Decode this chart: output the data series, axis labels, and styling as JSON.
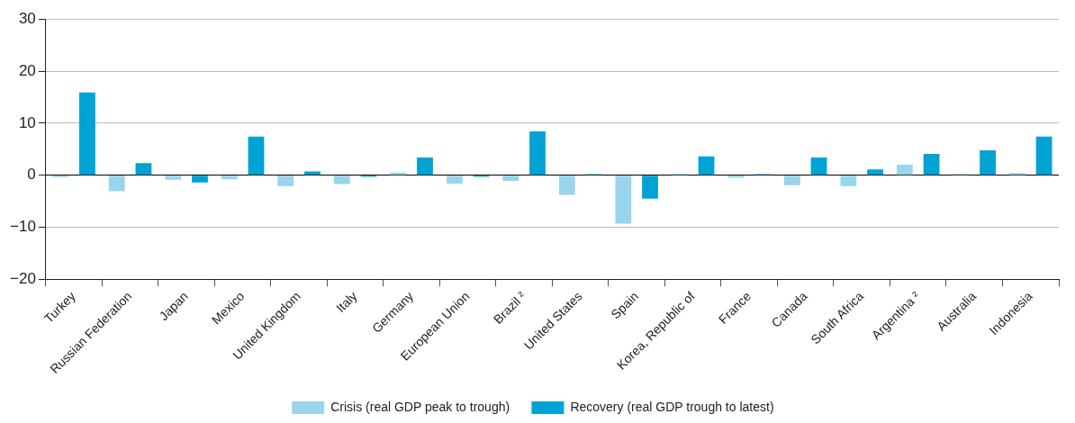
{
  "chart_data": {
    "type": "bar",
    "categories": [
      "Turkey",
      "Russian Federation",
      "Japan",
      "Mexico",
      "United Kingdom",
      "Italy",
      "Germany",
      "European Union",
      "Brazil ²",
      "United States",
      "Spain",
      "Korea, Republic of",
      "France",
      "Canada",
      "South Africa",
      "Argentina ²",
      "Australia",
      "Indonesia"
    ],
    "series": [
      {
        "name": "Crisis (real GDP peak to trough)",
        "color": "#99d5ee",
        "values": [
          -0.4,
          -3.1,
          -0.9,
          -0.8,
          -2.1,
          -1.7,
          0.5,
          -1.6,
          -1.1,
          -3.8,
          -9.3,
          0.3,
          -0.5,
          -1.9,
          -2.1,
          2.0,
          0.3,
          0.4
        ]
      },
      {
        "name": "Recovery (real GDP trough to latest)",
        "color": "#00a3d4",
        "values": [
          15.9,
          2.3,
          -1.4,
          7.4,
          0.7,
          -0.3,
          3.4,
          -0.3,
          8.4,
          0.2,
          -4.5,
          3.6,
          0.2,
          3.4,
          1.1,
          4.1,
          4.8,
          7.4
        ]
      }
    ],
    "ylim": [
      -20,
      30
    ],
    "yticks": [
      -20,
      -10,
      0,
      10,
      20,
      30
    ],
    "grid": "y",
    "legend": "bottom"
  }
}
